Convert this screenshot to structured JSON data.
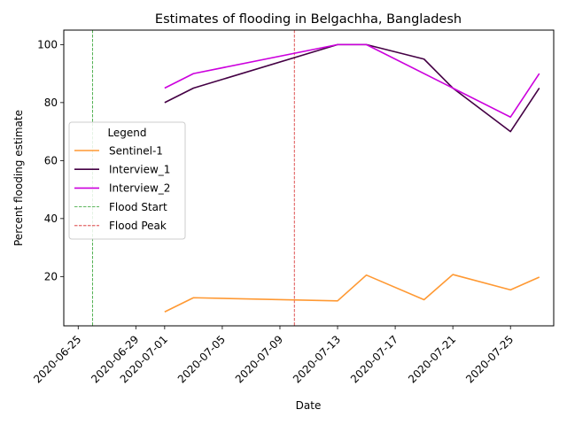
{
  "chart_data": {
    "type": "line",
    "title": "Estimates of flooding in Belgachha, Bangladesh",
    "xlabel": "Date",
    "ylabel": "Percent flooding estimate",
    "xlim": [
      "2020-06-24",
      "2020-07-28"
    ],
    "ylim": [
      3,
      105
    ],
    "xticks": [
      "2020-06-25",
      "2020-06-29",
      "2020-07-01",
      "2020-07-05",
      "2020-07-09",
      "2020-07-13",
      "2020-07-17",
      "2020-07-21",
      "2020-07-25"
    ],
    "yticks": [
      20,
      40,
      60,
      80,
      100
    ],
    "grid": false,
    "legend": {
      "title": "Legend",
      "placement": "center-left"
    },
    "series": [
      {
        "name": "Sentinel-1",
        "color": "#ff9933",
        "style": "solid",
        "x": [
          "2020-07-01",
          "2020-07-03",
          "2020-07-13",
          "2020-07-15",
          "2020-07-19",
          "2020-07-21",
          "2020-07-25",
          "2020-07-27"
        ],
        "values": [
          7.8,
          12.7,
          11.6,
          20.5,
          12.0,
          20.7,
          15.4,
          19.8
        ]
      },
      {
        "name": "Interview_1",
        "color": "#440044",
        "style": "solid",
        "x": [
          "2020-07-01",
          "2020-07-03",
          "2020-07-13",
          "2020-07-15",
          "2020-07-19",
          "2020-07-21",
          "2020-07-25",
          "2020-07-27"
        ],
        "values": [
          80,
          85,
          100,
          100,
          95,
          85,
          70,
          85
        ]
      },
      {
        "name": "Interview_2",
        "color": "#cc00dd",
        "style": "solid",
        "x": [
          "2020-07-01",
          "2020-07-03",
          "2020-07-13",
          "2020-07-15",
          "2020-07-21",
          "2020-07-25",
          "2020-07-27"
        ],
        "values": [
          85,
          90,
          100,
          100,
          85,
          75,
          90
        ]
      }
    ],
    "vlines": [
      {
        "name": "Flood Start",
        "x": "2020-06-26",
        "color": "#2ca02c",
        "style": "dashed"
      },
      {
        "name": "Flood Peak",
        "x": "2020-07-10",
        "color": "#d62728",
        "style": "dashed"
      }
    ]
  }
}
